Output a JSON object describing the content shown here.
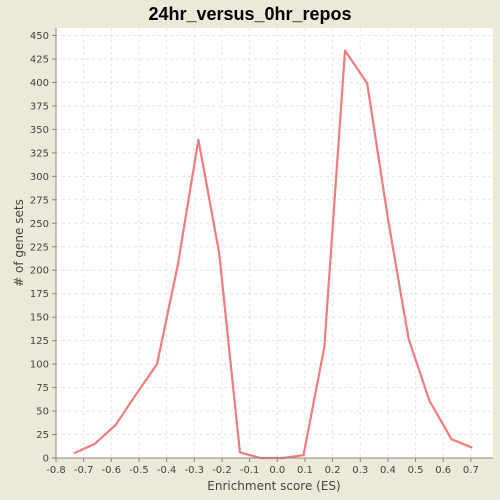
{
  "chart_data": {
    "type": "line",
    "title": "24hr_versus_0hr_repos",
    "xlabel": "Enrichment score (ES)",
    "ylabel": "# of gene sets",
    "xlim": [
      -0.8,
      0.78
    ],
    "ylim": [
      0,
      458
    ],
    "x_ticks": [
      -0.8,
      -0.7,
      -0.6,
      -0.5,
      -0.4,
      -0.3,
      -0.2,
      -0.1,
      0.0,
      0.1,
      0.2,
      0.3,
      0.4,
      0.5,
      0.6,
      0.7
    ],
    "x_tick_labels": [
      "-0.8",
      "-0.7",
      "-0.6",
      "-0.5",
      "-0.4",
      "-0.3",
      "-0.2",
      "-0.1",
      "0.0",
      "0.1",
      "0.2",
      "0.3",
      "0.4",
      "0.5",
      "0.6",
      "0.7"
    ],
    "y_ticks": [
      0,
      25,
      50,
      75,
      100,
      125,
      150,
      175,
      200,
      225,
      250,
      275,
      300,
      325,
      350,
      375,
      400,
      425,
      450
    ],
    "y_tick_labels": [
      "0",
      "25",
      "50",
      "75",
      "100",
      "125",
      "150",
      "175",
      "200",
      "225",
      "250",
      "275",
      "300",
      "325",
      "350",
      "375",
      "400",
      "425",
      "450"
    ],
    "grid": true,
    "series": [
      {
        "color": "#f07c7c",
        "x": [
          -0.735,
          -0.66,
          -0.585,
          -0.51,
          -0.435,
          -0.36,
          -0.285,
          -0.21,
          -0.135,
          -0.06,
          0.02,
          0.095,
          0.17,
          0.245,
          0.325,
          0.4,
          0.475,
          0.55,
          0.63,
          0.705
        ],
        "y": [
          5,
          15,
          35,
          68,
          100,
          205,
          339,
          218,
          6,
          0,
          0,
          3,
          118,
          434,
          399,
          255,
          127,
          61,
          20,
          11
        ]
      }
    ]
  }
}
